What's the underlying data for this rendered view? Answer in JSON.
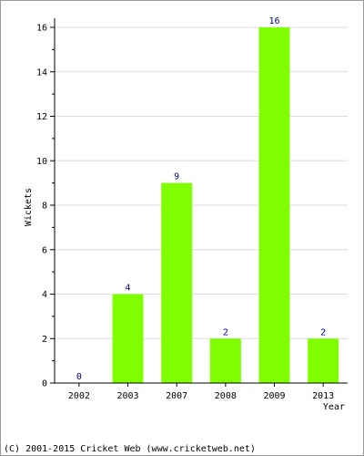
{
  "chart_data": {
    "type": "bar",
    "categories": [
      "2002",
      "2003",
      "2007",
      "2008",
      "2009",
      "2013"
    ],
    "values": [
      0,
      4,
      9,
      2,
      16,
      2
    ],
    "ylabel": "Wickets",
    "xlabel": "Year",
    "ylim": [
      0,
      16
    ],
    "yticks": [
      0,
      2,
      4,
      6,
      8,
      10,
      12,
      14,
      16
    ],
    "grid": true,
    "bar_color": "#80ff00",
    "value_label_color": "#000080"
  },
  "footer": {
    "copyright": "(C) 2001-2015 Cricket Web (www.cricketweb.net)"
  }
}
